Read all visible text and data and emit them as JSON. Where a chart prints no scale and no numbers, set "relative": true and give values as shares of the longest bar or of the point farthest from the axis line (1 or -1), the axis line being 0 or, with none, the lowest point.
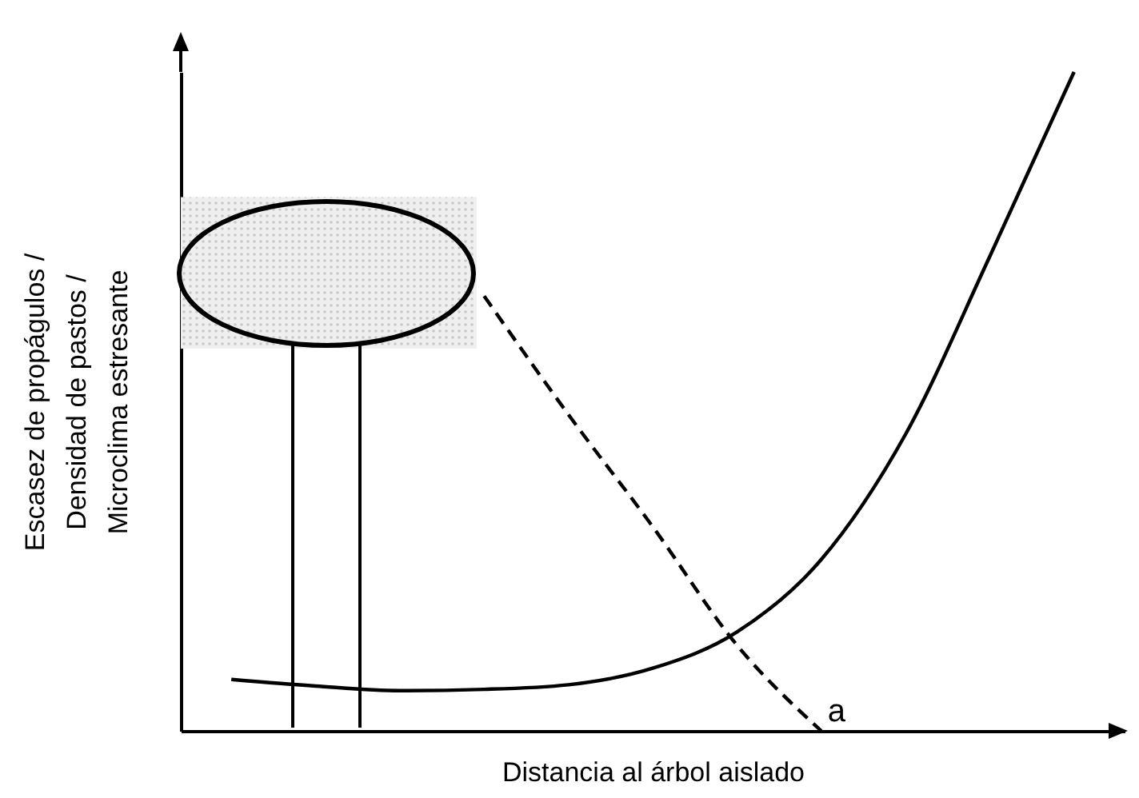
{
  "chart_data": {
    "type": "line",
    "relative": true,
    "xlabel": "Distancia al árbol aislado",
    "ylabel": "Escasez de propágulos / Densidad de pastos / Microclima estresante",
    "categories": [
      null,
      null,
      null,
      null,
      null,
      null,
      null,
      null,
      null,
      null,
      null
    ],
    "marker": "none",
    "legend": false,
    "annotations": [
      "a"
    ],
    "bands": [
      {
        "axis": "y",
        "from": 0.58,
        "to": 0.81,
        "color": "#c8c8c8"
      }
    ],
    "series": [
      {
        "color": "#000000",
        "line_style": "solid",
        "values": [
          0.078,
          0.068,
          0.061,
          0.063,
          0.07,
          0.095,
          0.15,
          0.26,
          0.45,
          0.72,
          1.0
        ]
      },
      {
        "color": "#000000",
        "line_style": "dashed",
        "values": [
          null,
          null,
          null,
          0.66,
          0.48,
          0.31,
          0.13,
          0.0,
          null,
          null,
          null
        ]
      }
    ]
  }
}
